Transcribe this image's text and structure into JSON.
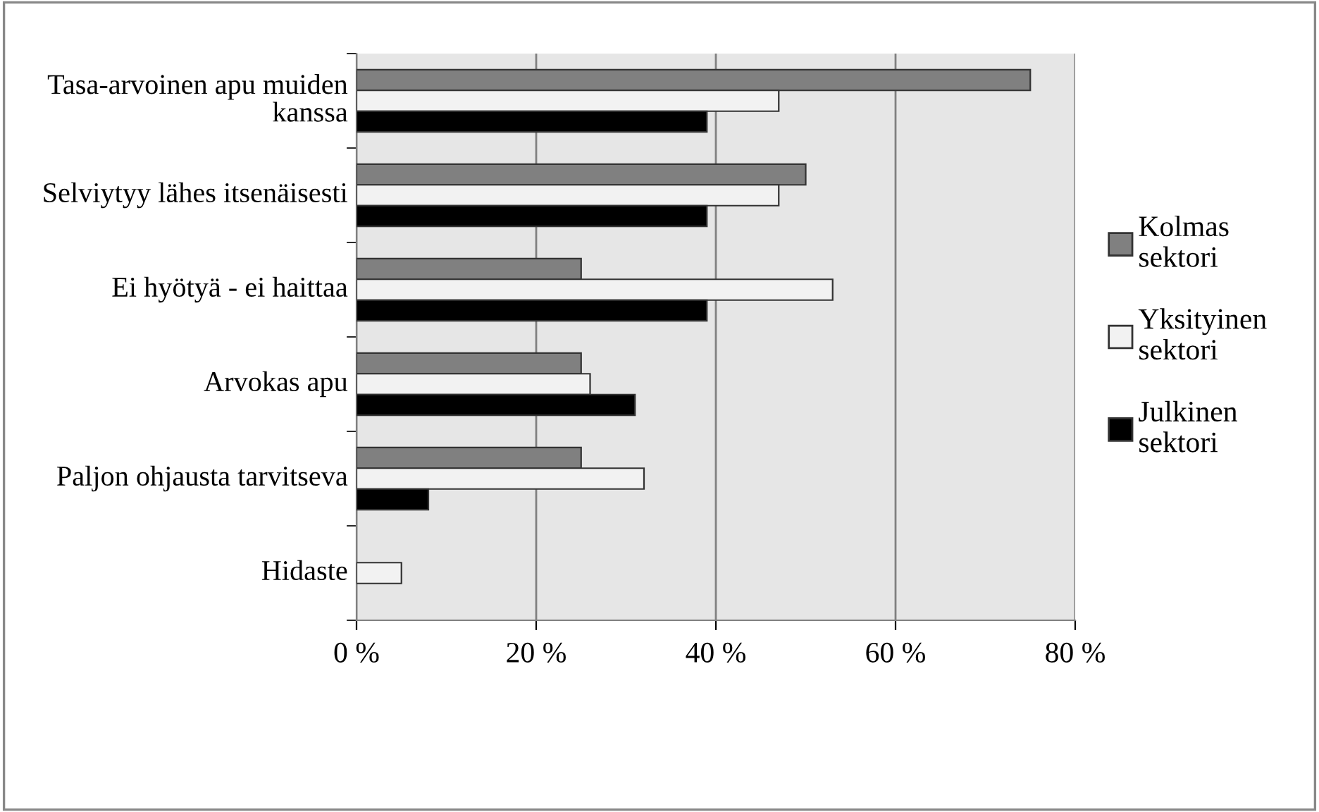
{
  "chart_data": {
    "type": "bar",
    "orientation": "horizontal",
    "categories": [
      "Tasa-arvoinen apu muiden kanssa",
      "Selviytyy lähes itsenäisesti",
      "Ei hyötyä - ei haittaa",
      "Arvokas apu",
      "Paljon ohjausta tarvitseva",
      "Hidaste"
    ],
    "series": [
      {
        "name": "Kolmas sektori",
        "color": "#808080",
        "values": [
          75,
          50,
          25,
          25,
          25,
          null
        ]
      },
      {
        "name": "Yksityinen sektori",
        "color": "#f2f2f2",
        "values": [
          47,
          47,
          53,
          26,
          32,
          5
        ]
      },
      {
        "name": "Julkinen sektori",
        "color": "#000000",
        "values": [
          39,
          39,
          39,
          31,
          8,
          null
        ]
      }
    ],
    "xlim": [
      0,
      80
    ],
    "xticks": [
      {
        "value": 0,
        "label": "0 %"
      },
      {
        "value": 20,
        "label": "20 %"
      },
      {
        "value": 40,
        "label": "40 %"
      },
      {
        "value": 60,
        "label": "60 %"
      },
      {
        "value": 80,
        "label": "80 %"
      }
    ],
    "grid": "x",
    "legend": "right"
  }
}
